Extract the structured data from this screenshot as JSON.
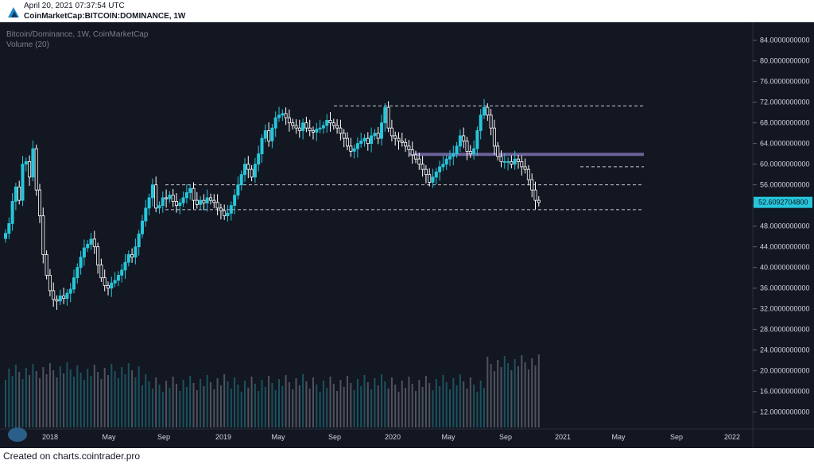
{
  "header": {
    "timestamp": "April 20, 2021 07:37:54 UTC",
    "symbol": "CoinMarketCap:BITCOIN:DOMINANCE, 1W"
  },
  "legend": {
    "line1": "Bitcoin/Dominance, 1W, CoinMarketCap",
    "line2": "Volume (20)"
  },
  "footer": {
    "text": "Created on charts.cointrader.pro"
  },
  "colors": {
    "background": "#131722",
    "up": "#26c6da",
    "down": "#ffffff",
    "zone": "#8e7cc3",
    "price_label_bg": "#26c6da",
    "axis_text": "#d1d4dc"
  },
  "chart_data": {
    "type": "candlestick",
    "series_name": "Bitcoin/Dominance",
    "y_ticks": [
      "84.0000000000",
      "80.0000000000",
      "76.0000000000",
      "72.0000000000",
      "68.0000000000",
      "64.0000000000",
      "60.0000000000",
      "56.0000000000",
      "52.0000000000",
      "48.0000000000",
      "44.0000000000",
      "40.0000000000",
      "36.0000000000",
      "32.0000000000",
      "28.0000000000",
      "24.0000000000",
      "20.0000000000",
      "16.0000000000",
      "12.0000000000"
    ],
    "x_ticks": [
      "2018",
      "May",
      "Sep",
      "2019",
      "May",
      "Sep",
      "2020",
      "May",
      "Sep",
      "2021",
      "May",
      "Sep",
      "2022"
    ],
    "x_range": [
      "2017-10",
      "2022-02"
    ],
    "ylim": [
      8.8,
      86.9
    ],
    "last_price": "52.6092704800",
    "closes": [
      46.6,
      48.5,
      52.8,
      55.6,
      53.0,
      60.0,
      60.5,
      57.5,
      63.0,
      55.0,
      50.0,
      42.5,
      38.5,
      35.5,
      33.8,
      33.5,
      34.5,
      34.0,
      35.0,
      35.8,
      38.0,
      40.0,
      42.0,
      43.8,
      44.5,
      45.5,
      44.0,
      40.5,
      38.0,
      36.5,
      36.0,
      37.0,
      37.5,
      38.5,
      39.5,
      41.0,
      42.5,
      42.0,
      44.0,
      46.5,
      49.0,
      51.5,
      53.5,
      56.0,
      51.5,
      52.0,
      53.5,
      53.3,
      54.0,
      52.8,
      52.0,
      52.5,
      53.5,
      54.5,
      55.3,
      53.0,
      52.2,
      53.0,
      52.5,
      53.5,
      53.0,
      52.6,
      51.5,
      51.0,
      50.0,
      50.5,
      52.0,
      54.0,
      56.0,
      58.0,
      60.0,
      59.0,
      57.5,
      60.0,
      62.0,
      65.0,
      66.5,
      64.5,
      67.0,
      69.0,
      69.5,
      69.8,
      69.0,
      68.0,
      67.5,
      67.0,
      66.5,
      68.0,
      67.0,
      66.5,
      66.2,
      66.8,
      67.0,
      67.5,
      68.5,
      68.0,
      67.5,
      67.0,
      66.0,
      65.0,
      63.5,
      62.5,
      63.0,
      64.0,
      64.5,
      65.0,
      64.0,
      65.5,
      66.0,
      65.0,
      68.0,
      71.0,
      67.0,
      65.5,
      65.0,
      64.5,
      64.2,
      63.5,
      62.8,
      61.8,
      61.0,
      60.0,
      59.0,
      58.0,
      56.5,
      57.5,
      58.5,
      59.5,
      60.0,
      61.0,
      61.5,
      62.0,
      63.5,
      65.5,
      64.5,
      62.5,
      62.0,
      63.0,
      66.5,
      69.5,
      71.0,
      69.5,
      67.0,
      63.5,
      61.5,
      60.5,
      60.5,
      60.5,
      60.0,
      61.0,
      60.5,
      59.5,
      59.0,
      57.0,
      55.0,
      53.0,
      52.6
    ],
    "support_resistance": [
      71.3,
      59.5,
      56.0,
      51.2
    ],
    "zone": [
      61.6,
      62.2
    ],
    "volume_axis_note": "lower pane bars"
  }
}
